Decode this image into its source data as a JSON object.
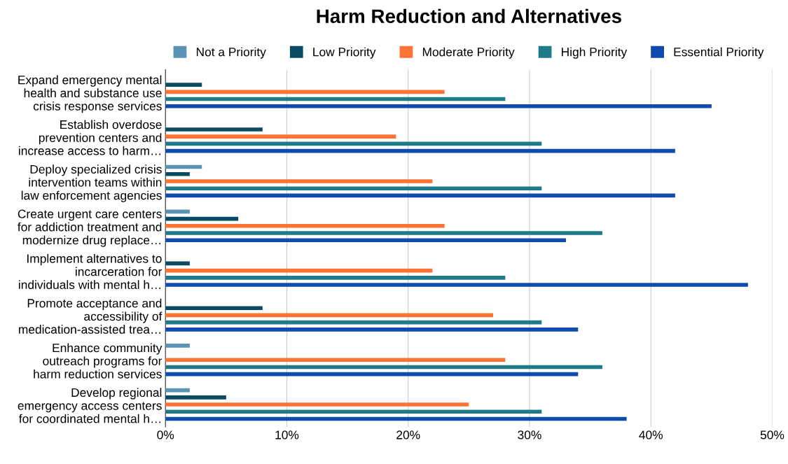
{
  "chart_data": {
    "type": "bar",
    "orientation": "horizontal",
    "title": "Harm Reduction and Alternatives",
    "categories": [
      "Expand emergency mental\nhealth and substance use\ncrisis response services",
      "Establish overdose\nprevention centers and\nincrease access to harm…",
      "Deploy specialized crisis\nintervention teams within\nlaw enforcement agencies",
      "Create urgent care centers\nfor addiction treatment and\nmodernize drug replace…",
      "Implement alternatives to\nincarceration for\nindividuals with mental h…",
      "Promote acceptance and\naccessibility of\nmedication-assisted trea…",
      "Enhance community\noutreach programs for\nharm reduction services",
      "Develop regional\nemergency access centers\nfor coordinated mental h…"
    ],
    "series": [
      {
        "name": "Not a Priority",
        "color": "#5b93b5",
        "values": [
          0,
          0,
          3,
          2,
          0,
          0,
          2,
          2
        ]
      },
      {
        "name": "Low Priority",
        "color": "#0b4a63",
        "values": [
          3,
          8,
          2,
          6,
          2,
          8,
          0,
          5
        ]
      },
      {
        "name": "Moderate Priority",
        "color": "#ff7335",
        "values": [
          23,
          19,
          22,
          23,
          22,
          27,
          28,
          25
        ]
      },
      {
        "name": "High Priority",
        "color": "#1f7a8a",
        "values": [
          28,
          31,
          31,
          36,
          28,
          31,
          36,
          31
        ]
      },
      {
        "name": "Essential Priority",
        "color": "#0f4aad",
        "values": [
          45,
          42,
          42,
          33,
          48,
          34,
          34,
          38
        ]
      }
    ],
    "xlim": [
      0,
      50
    ],
    "xticks": [
      {
        "value": 0,
        "label": "0%"
      },
      {
        "value": 10,
        "label": "10%"
      },
      {
        "value": 20,
        "label": "20%"
      },
      {
        "value": 30,
        "label": "30%"
      },
      {
        "value": 40,
        "label": "40%"
      },
      {
        "value": 50,
        "label": "50%"
      }
    ],
    "grid": "x",
    "legend": "top"
  }
}
